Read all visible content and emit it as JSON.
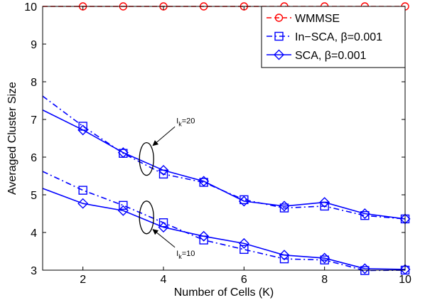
{
  "chart_data": {
    "type": "line",
    "xlabel": "Number of Cells (K)",
    "ylabel": "Averaged Cluster Size",
    "xlim": [
      1,
      10
    ],
    "ylim": [
      3,
      10
    ],
    "xticks": [
      2,
      4,
      6,
      8,
      10
    ],
    "yticks": [
      3,
      4,
      5,
      6,
      7,
      8,
      9,
      10
    ],
    "grid": false,
    "legend_position": "top-right",
    "series": [
      {
        "name": "WMMSE",
        "color": "#ff0000",
        "linestyle": "dashed",
        "marker": "circle",
        "segments": [
          {
            "x": [
              1,
              2,
              3,
              4,
              5,
              6,
              7,
              8,
              9,
              10
            ],
            "y": [
              10,
              10,
              10,
              10,
              10,
              10,
              10,
              10,
              10,
              10
            ],
            "markers": true
          }
        ]
      },
      {
        "name": "In−SCA, β=0.001",
        "color": "#0000ff",
        "linestyle": "dashdot",
        "marker": "square",
        "segments": [
          {
            "x": [
              1,
              2,
              3,
              4,
              5,
              6,
              7,
              8,
              9,
              10
            ],
            "y": [
              7.62,
              6.82,
              6.1,
              5.55,
              5.33,
              4.87,
              4.65,
              4.7,
              4.45,
              4.36
            ],
            "markers": true
          },
          {
            "x": [
              1,
              2,
              3,
              4,
              5,
              6,
              7,
              8,
              9,
              10
            ],
            "y": [
              5.62,
              5.12,
              4.72,
              4.26,
              3.8,
              3.55,
              3.3,
              3.27,
              2.99,
              3.0
            ],
            "markers": true
          }
        ]
      },
      {
        "name": "SCA, β=0.001",
        "color": "#0000ff",
        "linestyle": "solid",
        "marker": "diamond",
        "segments": [
          {
            "x": [
              1,
              2,
              3,
              4,
              5,
              6,
              7,
              8,
              9,
              10
            ],
            "y": [
              7.25,
              6.72,
              6.12,
              5.65,
              5.36,
              4.83,
              4.7,
              4.8,
              4.5,
              4.36
            ],
            "markers": true
          },
          {
            "x": [
              1,
              2,
              3,
              4,
              5,
              6,
              7,
              8,
              9,
              10
            ],
            "y": [
              5.17,
              4.77,
              4.58,
              4.14,
              3.9,
              3.71,
              3.4,
              3.32,
              3.04,
              3.02
            ],
            "markers": true
          }
        ]
      }
    ],
    "annotations": [
      {
        "label": "I",
        "sub": "k",
        "suffix": "=20",
        "x": 3.58,
        "y": 5.95,
        "text_x": 4.32,
        "text_y": 6.9
      },
      {
        "label": "I",
        "sub": "k",
        "suffix": "=10",
        "x": 3.58,
        "y": 4.4,
        "text_x": 4.32,
        "text_y": 3.38
      }
    ]
  }
}
